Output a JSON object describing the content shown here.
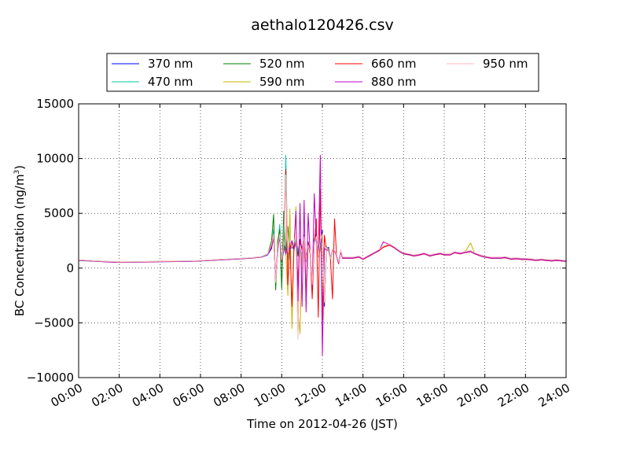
{
  "chart_data": {
    "type": "line",
    "title": "aethalo120426.csv",
    "xlabel": "Time on 2012-04-26 (JST)",
    "ylabel_main": "BC Concentration (ng/m",
    "ylabel_sup": "3",
    "ylabel_tail": ")",
    "xlim": [
      0,
      24
    ],
    "ylim": [
      -10000,
      15000
    ],
    "x_ticks": [
      0,
      2,
      4,
      6,
      8,
      10,
      12,
      14,
      16,
      18,
      20,
      22,
      24
    ],
    "x_tick_labels": [
      "00:00",
      "02:00",
      "04:00",
      "06:00",
      "08:00",
      "10:00",
      "12:00",
      "14:00",
      "16:00",
      "18:00",
      "20:00",
      "22:00",
      "24:00"
    ],
    "y_ticks": [
      -10000,
      -5000,
      0,
      5000,
      10000,
      15000
    ],
    "y_tick_labels": [
      "−10000",
      "−5000",
      "0",
      "5000",
      "10000",
      "15000"
    ],
    "grid": true,
    "legend_position": "top-center-outside",
    "x": [
      0.0,
      0.5,
      1.0,
      1.5,
      2.0,
      2.5,
      3.0,
      3.5,
      4.0,
      4.5,
      5.0,
      5.5,
      6.0,
      6.5,
      7.0,
      7.5,
      8.0,
      8.5,
      9.0,
      9.3,
      9.5,
      9.6,
      9.7,
      9.8,
      9.9,
      10.0,
      10.1,
      10.2,
      10.3,
      10.4,
      10.5,
      10.6,
      10.7,
      10.8,
      10.9,
      11.0,
      11.1,
      11.2,
      11.3,
      11.4,
      11.5,
      11.6,
      11.7,
      11.8,
      11.9,
      12.0,
      12.1,
      12.2,
      12.3,
      12.4,
      12.5,
      12.6,
      12.7,
      12.8,
      12.9,
      13.0,
      13.2,
      13.5,
      13.8,
      14.0,
      14.3,
      14.5,
      14.8,
      15.0,
      15.3,
      15.5,
      15.8,
      16.0,
      16.3,
      16.5,
      16.8,
      17.0,
      17.3,
      17.5,
      17.8,
      18.0,
      18.3,
      18.5,
      18.8,
      19.0,
      19.3,
      19.5,
      19.8,
      20.0,
      20.3,
      20.5,
      20.8,
      21.0,
      21.3,
      21.5,
      21.8,
      22.0,
      22.3,
      22.5,
      22.8,
      23.0,
      23.3,
      23.5,
      23.8,
      24.0
    ],
    "series": [
      {
        "name": "370 nm",
        "color": "#0000ff",
        "values": [
          700,
          650,
          600,
          550,
          520,
          530,
          540,
          560,
          580,
          590,
          600,
          620,
          650,
          700,
          750,
          800,
          850,
          900,
          1000,
          1200,
          1800,
          2900,
          -1000,
          1500,
          3200,
          800,
          2200,
          1400,
          1900,
          1600,
          2500,
          1800,
          2200,
          1300,
          2600,
          1700,
          3000,
          900,
          2400,
          1400,
          -2000,
          2600,
          3200,
          1200,
          1800,
          3500,
          -3500,
          1800,
          1900,
          900,
          1700,
          1600,
          1100,
          400,
          1500,
          900,
          900,
          900,
          1000,
          800,
          1100,
          1300,
          1600,
          1900,
          2100,
          1900,
          1500,
          1300,
          1200,
          1100,
          1200,
          1300,
          1100,
          1200,
          1300,
          1200,
          1200,
          1400,
          1300,
          1400,
          1500,
          1300,
          1100,
          1000,
          900,
          900,
          900,
          950,
          800,
          850,
          800,
          800,
          750,
          700,
          750,
          700,
          650,
          700,
          650,
          600
        ]
      },
      {
        "name": "470 nm",
        "color": "#00c8a8",
        "values": [
          750,
          700,
          650,
          600,
          560,
          570,
          580,
          600,
          620,
          630,
          640,
          660,
          690,
          740,
          790,
          840,
          890,
          950,
          1050,
          1300,
          2000,
          3500,
          -1500,
          2000,
          4000,
          500,
          1500,
          10300,
          800,
          2500,
          1800,
          2200,
          3000,
          1500,
          2000,
          1300,
          2800,
          600,
          2000,
          1500,
          -1500,
          2200,
          2800,
          1000,
          2500,
          3000,
          -3000,
          2000,
          1500,
          800,
          1600,
          1500,
          1200,
          500,
          1600,
          950,
          950,
          950,
          1050,
          850,
          1150,
          1350,
          1650,
          2000,
          2200,
          2000,
          1550,
          1350,
          1250,
          1150,
          1250,
          1350,
          1150,
          1250,
          1350,
          1250,
          1250,
          1450,
          1350,
          1450,
          1550,
          1350,
          1150,
          1050,
          950,
          950,
          950,
          1000,
          850,
          900,
          850,
          850,
          800,
          750,
          800,
          750,
          700,
          750,
          700,
          650
        ]
      },
      {
        "name": "520 nm",
        "color": "#008000",
        "values": [
          720,
          680,
          620,
          580,
          540,
          550,
          560,
          580,
          600,
          610,
          620,
          640,
          670,
          720,
          770,
          820,
          870,
          920,
          1020,
          1250,
          2500,
          4900,
          -2000,
          2500,
          3500,
          -1900,
          5200,
          1200,
          3800,
          1500,
          2200,
          1600,
          2600,
          1100,
          2300,
          1500,
          2700,
          800,
          2100,
          1300,
          -1800,
          2400,
          3000,
          1100,
          1700,
          3200,
          -3200,
          1700,
          1800,
          850,
          1650,
          1550,
          1150,
          450,
          1550,
          920,
          920,
          920,
          1020,
          820,
          1120,
          1320,
          1620,
          1950,
          2150,
          1950,
          1520,
          1320,
          1220,
          1120,
          1220,
          1320,
          1120,
          1220,
          1320,
          1220,
          1220,
          1420,
          1320,
          1420,
          1520,
          1320,
          1120,
          1020,
          920,
          920,
          920,
          970,
          820,
          870,
          820,
          820,
          770,
          720,
          770,
          720,
          670,
          720,
          670,
          620
        ]
      },
      {
        "name": "590 nm",
        "color": "#c8b400",
        "values": [
          730,
          690,
          630,
          590,
          550,
          560,
          570,
          590,
          610,
          620,
          630,
          650,
          680,
          730,
          780,
          830,
          880,
          930,
          1030,
          1260,
          2100,
          3000,
          -1200,
          1800,
          3000,
          700,
          2000,
          1500,
          -2500,
          5400,
          -5500,
          1800,
          5600,
          -4000,
          -6000,
          1500,
          2800,
          -2000,
          2200,
          1400,
          -1600,
          2300,
          2900,
          1050,
          1600,
          3100,
          -3100,
          1650,
          1750,
          820,
          1620,
          1520,
          1120,
          420,
          1520,
          910,
          910,
          910,
          1010,
          810,
          1110,
          1310,
          1610,
          1930,
          2130,
          1930,
          1510,
          1310,
          1210,
          1110,
          1210,
          1310,
          1110,
          1210,
          1310,
          1210,
          1210,
          1410,
          1310,
          1410,
          2300,
          1310,
          1110,
          1010,
          910,
          910,
          910,
          960,
          810,
          860,
          810,
          810,
          760,
          710,
          760,
          710,
          660,
          710,
          660,
          610
        ]
      },
      {
        "name": "660 nm",
        "color": "#ff0000",
        "values": [
          710,
          670,
          610,
          570,
          530,
          540,
          550,
          570,
          590,
          600,
          610,
          630,
          660,
          710,
          760,
          810,
          860,
          910,
          1010,
          1240,
          1900,
          2800,
          -1100,
          1700,
          2900,
          600,
          1900,
          9000,
          -1500,
          2300,
          -3500,
          1700,
          2400,
          -1200,
          2500,
          1600,
          2900,
          -2500,
          2300,
          1350,
          -2800,
          2200,
          4500,
          -4500,
          7200,
          -4700,
          3000,
          1600,
          1700,
          800,
          -2800,
          4500,
          1100,
          400,
          1500,
          900,
          900,
          900,
          1000,
          800,
          1100,
          1300,
          1600,
          1900,
          2100,
          1900,
          1500,
          1300,
          1200,
          1100,
          1200,
          1300,
          1100,
          1200,
          1300,
          1200,
          1200,
          1400,
          1300,
          1400,
          1500,
          1300,
          1100,
          1000,
          900,
          900,
          900,
          950,
          800,
          850,
          800,
          800,
          750,
          700,
          750,
          700,
          650,
          700,
          650,
          600
        ]
      },
      {
        "name": "880 nm",
        "color": "#c000c0",
        "values": [
          720,
          680,
          620,
          580,
          540,
          550,
          560,
          580,
          600,
          610,
          620,
          640,
          670,
          720,
          770,
          820,
          870,
          920,
          1020,
          1250,
          1950,
          2900,
          -1100,
          1750,
          2950,
          650,
          1950,
          1300,
          2000,
          1600,
          2400,
          1700,
          5200,
          -3000,
          5900,
          -3500,
          6200,
          -4000,
          5000,
          1400,
          -1700,
          6800,
          2500,
          1100,
          10300,
          -8000,
          1800,
          1600,
          1700,
          850,
          1650,
          1550,
          1150,
          450,
          1550,
          920,
          920,
          920,
          1020,
          820,
          1120,
          1320,
          1620,
          2400,
          2150,
          1950,
          1520,
          1320,
          1220,
          1120,
          1220,
          1320,
          1120,
          1220,
          1320,
          1220,
          1220,
          1420,
          1320,
          1420,
          1520,
          1320,
          1120,
          1020,
          920,
          920,
          920,
          970,
          820,
          870,
          820,
          820,
          770,
          720,
          770,
          720,
          670,
          720,
          670,
          620
        ]
      },
      {
        "name": "950 nm",
        "color": "#ffb6c1",
        "values": [
          740,
          700,
          640,
          600,
          560,
          570,
          580,
          600,
          620,
          630,
          640,
          660,
          690,
          740,
          790,
          840,
          890,
          940,
          1040,
          1270,
          2200,
          3100,
          -1300,
          1900,
          3100,
          750,
          2100,
          8500,
          1500,
          2600,
          1900,
          2300,
          3100,
          -6500,
          2100,
          1400,
          2900,
          700,
          2100,
          1500,
          -1500,
          2300,
          2900,
          1050,
          2600,
          3100,
          -3100,
          1900,
          1600,
          850,
          1700,
          1600,
          1250,
          550,
          1650,
          1000,
          1000,
          1000,
          1100,
          900,
          1200,
          1400,
          1700,
          2000,
          2200,
          2000,
          1600,
          1400,
          1300,
          1200,
          1300,
          1400,
          1200,
          1300,
          1400,
          1300,
          1300,
          1500,
          1400,
          1500,
          1600,
          1400,
          1200,
          1100,
          1000,
          1000,
          1000,
          1050,
          900,
          950,
          900,
          900,
          850,
          800,
          850,
          800,
          750,
          800,
          750,
          700
        ]
      }
    ]
  }
}
